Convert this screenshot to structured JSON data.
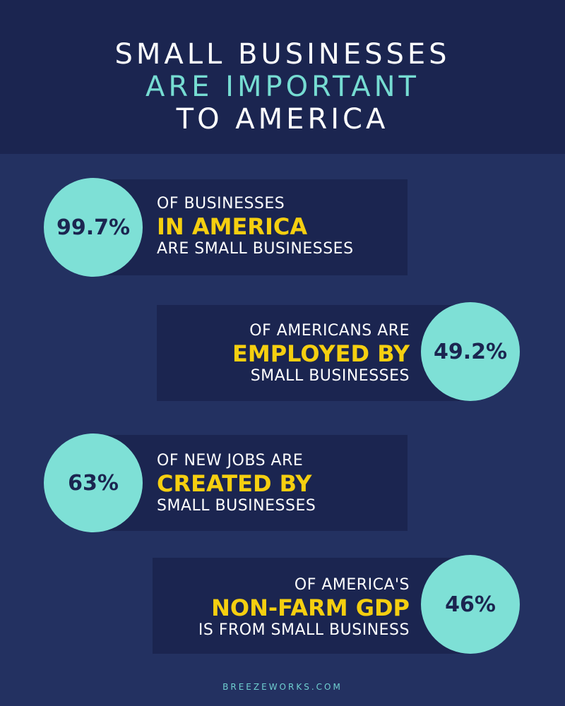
{
  "header": {
    "line1": "SMALL BUSINESSES",
    "line2": "ARE IMPORTANT",
    "line3": "TO AMERICA",
    "accent_color": "#76dcd2"
  },
  "stats": [
    {
      "value": "99.7%",
      "line1": "OF BUSINESSES",
      "highlight": "IN AMERICA",
      "line3": "ARE SMALL BUSINESSES"
    },
    {
      "value": "49.2%",
      "line1": "OF AMERICANS ARE",
      "highlight": "EMPLOYED BY",
      "line3": "SMALL BUSINESSES"
    },
    {
      "value": "63%",
      "line1": "OF NEW JOBS ARE",
      "highlight": "CREATED BY",
      "line3": "SMALL BUSINESSES"
    },
    {
      "value": "46%",
      "line1": "OF AMERICA'S",
      "highlight": "NON-FARM GDP",
      "line3": "IS FROM SMALL BUSINESS"
    }
  ],
  "footer": {
    "text": "BREEZEWORKS.COM"
  },
  "colors": {
    "background": "#233161",
    "panel": "#1b2550",
    "circle": "#7ee0d6",
    "highlight": "#f5cf10"
  }
}
